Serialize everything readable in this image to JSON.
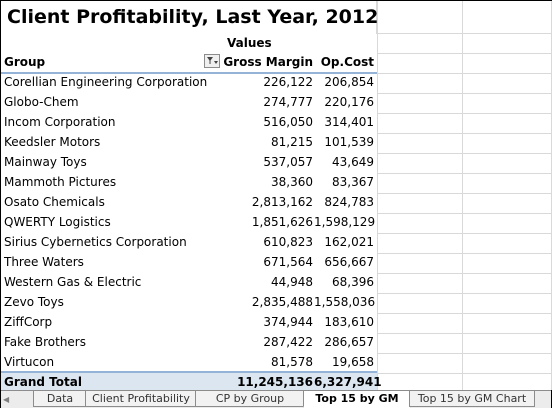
{
  "title": "Client Profitability, Last Year, 2012",
  "header": {
    "values_label": "Values",
    "group_label": "Group",
    "filter_icon": "filter-icon",
    "gross_margin_label": "Gross Margin",
    "op_cost_label": "Op.Cost"
  },
  "rows": [
    {
      "group": "Corellian Engineering Corporation",
      "gross_margin": "226,122",
      "op_cost": "206,854"
    },
    {
      "group": "Globo-Chem",
      "gross_margin": "274,777",
      "op_cost": "220,176"
    },
    {
      "group": "Incom Corporation",
      "gross_margin": "516,050",
      "op_cost": "314,401"
    },
    {
      "group": "Keedsler Motors",
      "gross_margin": "81,215",
      "op_cost": "101,539"
    },
    {
      "group": "Mainway Toys",
      "gross_margin": "537,057",
      "op_cost": "43,649"
    },
    {
      "group": "Mammoth Pictures",
      "gross_margin": "38,360",
      "op_cost": "83,367"
    },
    {
      "group": "Osato Chemicals",
      "gross_margin": "2,813,162",
      "op_cost": "824,783"
    },
    {
      "group": "QWERTY Logistics",
      "gross_margin": "1,851,626",
      "op_cost": "1,598,129"
    },
    {
      "group": "Sirius Cybernetics Corporation",
      "gross_margin": "610,823",
      "op_cost": "162,021"
    },
    {
      "group": "Three Waters",
      "gross_margin": "671,564",
      "op_cost": "656,667"
    },
    {
      "group": "Western Gas & Electric",
      "gross_margin": "44,948",
      "op_cost": "68,396"
    },
    {
      "group": "Zevo Toys",
      "gross_margin": "2,835,488",
      "op_cost": "1,558,036"
    },
    {
      "group": "ZiffCorp",
      "gross_margin": "374,944",
      "op_cost": "183,610"
    },
    {
      "group": "Fake Brothers",
      "gross_margin": "287,422",
      "op_cost": "286,657"
    },
    {
      "group": "Virtucon",
      "gross_margin": "81,578",
      "op_cost": "19,658"
    }
  ],
  "grand_total": {
    "label": "Grand Total",
    "gross_margin": "11,245,136",
    "op_cost": "6,327,941"
  },
  "tabs": [
    {
      "label": "Data",
      "active": false
    },
    {
      "label": "Client Profitability",
      "active": false
    },
    {
      "label": "CP by Group",
      "active": false
    },
    {
      "label": "Top 15 by GM",
      "active": true
    },
    {
      "label": "Top 15 by GM Chart",
      "active": false
    }
  ],
  "colors": {
    "header_border": "#95b3d7",
    "total_fill": "#dce6f1",
    "gridline": "#d9d9d9"
  }
}
